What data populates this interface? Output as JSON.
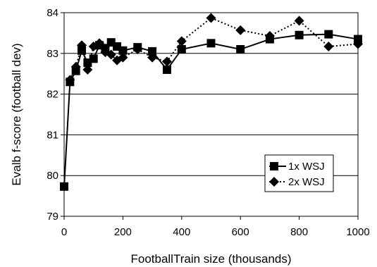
{
  "chart_data": {
    "type": "line",
    "xlabel": "FootballTrain size (thousands)",
    "ylabel": "Evalb f-score (football dev)",
    "xlim": [
      0,
      1000
    ],
    "ylim": [
      79,
      84
    ],
    "xticks": [
      0,
      200,
      400,
      600,
      800,
      1000
    ],
    "yticks": [
      79,
      80,
      81,
      82,
      83,
      84
    ],
    "grid": "horizontal",
    "legend_position": "bottom-right",
    "series": [
      {
        "name": "1x WSJ",
        "marker": "square",
        "line": "solid",
        "x": [
          0,
          20,
          40,
          60,
          80,
          100,
          120,
          140,
          160,
          180,
          200,
          250,
          300,
          350,
          400,
          500,
          600,
          700,
          800,
          900,
          1000
        ],
        "y": [
          79.73,
          82.3,
          82.57,
          83.07,
          82.77,
          82.87,
          83.2,
          83.13,
          83.27,
          83.17,
          83.07,
          83.15,
          83.05,
          82.6,
          83.1,
          83.25,
          83.1,
          83.35,
          83.45,
          83.47,
          83.35
        ]
      },
      {
        "name": "2x WSJ",
        "marker": "diamond",
        "line": "dotted",
        "x": [
          20,
          40,
          60,
          80,
          100,
          120,
          140,
          160,
          180,
          200,
          250,
          300,
          350,
          400,
          500,
          600,
          700,
          800,
          900,
          1000
        ],
        "y": [
          82.35,
          82.67,
          83.2,
          82.6,
          83.17,
          83.25,
          83.03,
          82.97,
          82.83,
          82.9,
          83.1,
          82.9,
          82.8,
          83.3,
          83.87,
          83.57,
          83.43,
          83.8,
          83.17,
          83.23
        ]
      }
    ]
  }
}
